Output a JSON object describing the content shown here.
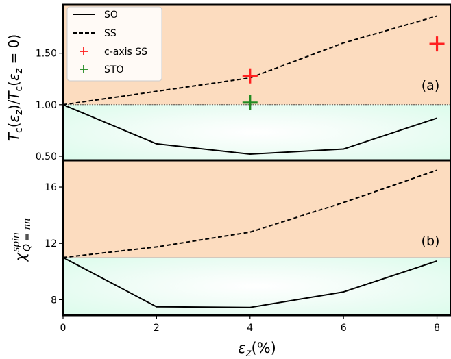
{
  "chart_data": [
    {
      "panel": "(a)",
      "type": "line",
      "ylabel": "T_c(ε_z)/T_c(ε_z=0)",
      "xlim": [
        0,
        8.3
      ],
      "ylim": [
        0.46,
        1.97
      ],
      "yticks": [
        "0.50",
        "1.00",
        "1.50"
      ],
      "ytick_values": [
        0.5,
        1.0,
        1.5
      ],
      "reference_line": 1.0,
      "background_split": 1.0,
      "colors": {
        "upper_region": "#fcdcbf",
        "lower_region": "#d9fbea",
        "c_axis_SS": "#ff2020",
        "STO": "#228b22"
      },
      "legend": {
        "position": "top-left",
        "entries": [
          {
            "label": "SO",
            "style": "solid"
          },
          {
            "label": "SS",
            "style": "dashed"
          },
          {
            "label": "c-axis SS",
            "style": "marker",
            "color": "#ff2020"
          },
          {
            "label": "STO",
            "style": "marker",
            "color": "#228b22"
          }
        ]
      },
      "series": [
        {
          "name": "SO",
          "style": "solid",
          "x": [
            0,
            2,
            4,
            6,
            8
          ],
          "y": [
            1.0,
            0.62,
            0.52,
            0.57,
            0.87
          ]
        },
        {
          "name": "SS",
          "style": "dashed",
          "x": [
            0,
            2,
            4,
            6,
            8
          ],
          "y": [
            1.0,
            1.13,
            1.26,
            1.6,
            1.86
          ]
        },
        {
          "name": "c-axis SS",
          "style": "marker",
          "x": [
            4,
            8
          ],
          "y": [
            1.28,
            1.59
          ]
        },
        {
          "name": "STO",
          "style": "marker",
          "x": [
            4
          ],
          "y": [
            1.02
          ]
        }
      ]
    },
    {
      "panel": "(b)",
      "type": "line",
      "ylabel": "χ_{Q=ππ}^{spin}",
      "xlim": [
        0,
        8.3
      ],
      "ylim": [
        6.9,
        17.9
      ],
      "yticks": [
        "8",
        "12",
        "16"
      ],
      "ytick_values": [
        8,
        12,
        16
      ],
      "background_split": 11.0,
      "xlabel": "ε_z(%)",
      "xticks": [
        "0",
        "2",
        "4",
        "6",
        "8"
      ],
      "xtick_values": [
        0,
        2,
        4,
        6,
        8
      ],
      "series": [
        {
          "name": "SO",
          "style": "solid",
          "x": [
            0,
            2,
            4,
            6,
            8
          ],
          "y": [
            11.0,
            7.5,
            7.45,
            8.55,
            10.75
          ]
        },
        {
          "name": "SS",
          "style": "dashed",
          "x": [
            0,
            2,
            4,
            6,
            8
          ],
          "y": [
            11.0,
            11.75,
            12.8,
            14.9,
            17.2
          ]
        }
      ]
    }
  ]
}
